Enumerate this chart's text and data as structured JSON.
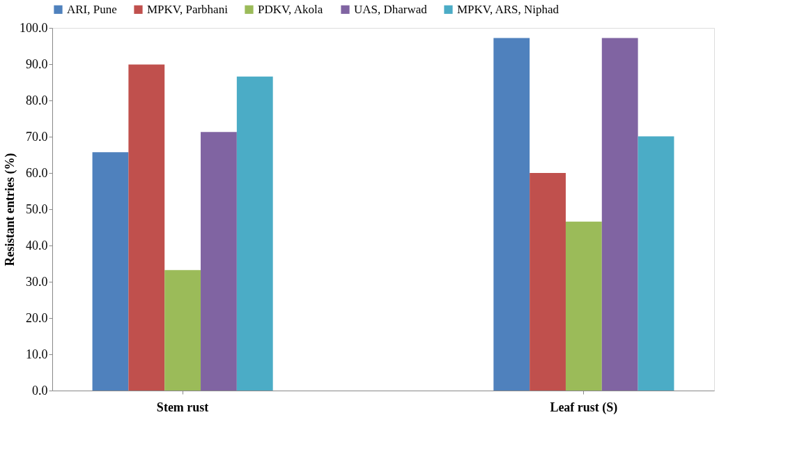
{
  "chart_data": {
    "type": "bar",
    "ylabel": "Resistant entries (%)",
    "categories": [
      "Stem rust",
      "Leaf rust (S)"
    ],
    "series": [
      {
        "name": "ARI, Pune",
        "color": "#4f81bd",
        "values": [
          65.7,
          97.2
        ]
      },
      {
        "name": "MPKV, Parbhani",
        "color": "#c0504d",
        "values": [
          89.9,
          60.0
        ]
      },
      {
        "name": "PDKV, Akola",
        "color": "#9bbb59",
        "values": [
          33.2,
          46.6
        ]
      },
      {
        "name": "UAS, Dharwad",
        "color": "#8064a2",
        "values": [
          71.3,
          97.2
        ]
      },
      {
        "name": "MPKV, ARS, Niphad",
        "color": "#4bacc6",
        "values": [
          86.6,
          70.1
        ]
      }
    ],
    "ylim": [
      0,
      100
    ],
    "yticks": [
      {
        "value": 0,
        "label": "0.0"
      },
      {
        "value": 10,
        "label": "10.0"
      },
      {
        "value": 20,
        "label": "20.0"
      },
      {
        "value": 30,
        "label": "30.0"
      },
      {
        "value": 40,
        "label": "40.0"
      },
      {
        "value": 50,
        "label": "50.0"
      },
      {
        "value": 60,
        "label": "60.0"
      },
      {
        "value": 70,
        "label": "70.0"
      },
      {
        "value": 80,
        "label": "80.0"
      },
      {
        "value": 90,
        "label": "90.0"
      },
      {
        "value": 100,
        "label": "100.0"
      }
    ],
    "grid": false,
    "legend": "top"
  }
}
